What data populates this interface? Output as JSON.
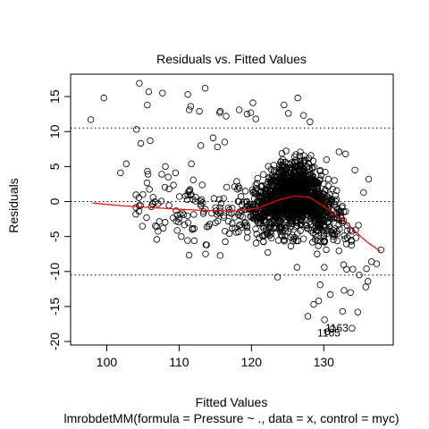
{
  "chart_data": {
    "type": "scatter",
    "title": "Residuals vs. Fitted Values",
    "xlabel": "Fitted Values",
    "ylabel": "Residuals",
    "subtitle": "lmrobdetMM(formula = Pressure ~ ., data = x, control = myc)",
    "xlim": [
      95.0,
      139.6
    ],
    "ylim": [
      -20.5,
      18.2
    ],
    "xticks": [
      100,
      110,
      120,
      130
    ],
    "yticks": [
      -20,
      -15,
      -10,
      -5,
      0,
      5,
      10,
      15
    ],
    "reference_lines": [
      {
        "y": 10.5,
        "style": "dotted"
      },
      {
        "y": 0,
        "style": "dotted"
      },
      {
        "y": -10.5,
        "style": "dotted"
      }
    ],
    "smooth_curve": {
      "color": "#ff0000",
      "points": [
        [
          98,
          -0.2
        ],
        [
          102,
          -0.6
        ],
        [
          106,
          -0.85
        ],
        [
          110,
          -1.1
        ],
        [
          114,
          -1.3
        ],
        [
          118,
          -1.35
        ],
        [
          121,
          -0.9
        ],
        [
          124,
          0.3
        ],
        [
          126,
          0.8
        ],
        [
          128,
          0.6
        ],
        [
          130,
          -0.7
        ],
        [
          132,
          -2.2
        ],
        [
          134,
          -4.0
        ],
        [
          136,
          -5.8
        ],
        [
          137.8,
          -7.1
        ]
      ]
    },
    "outlier_labels": [
      {
        "text": "1163",
        "x": 131.8,
        "y": -18.6
      },
      {
        "text": "1165",
        "x": 130.7,
        "y": -19.3
      }
    ],
    "points": [
      [
        97.8,
        11.7
      ],
      [
        99.6,
        14.8
      ],
      [
        104.5,
        16.9
      ],
      [
        105.8,
        15.7
      ],
      [
        107.7,
        15.5
      ],
      [
        105.6,
        13.8
      ],
      [
        111.2,
        15.3
      ],
      [
        113.6,
        16.2
      ],
      [
        111.6,
        13.6
      ],
      [
        111.4,
        13.1
      ],
      [
        112.8,
        12.9
      ],
      [
        115.7,
        12.9
      ],
      [
        116.5,
        12.2
      ],
      [
        115.6,
        12.7
      ],
      [
        118.3,
        13.1
      ],
      [
        119.9,
        12.7
      ],
      [
        120.2,
        14.1
      ],
      [
        120.6,
        11.8
      ],
      [
        119.4,
        12.5
      ],
      [
        104.7,
        8.3
      ],
      [
        106.0,
        8.7
      ],
      [
        104.1,
        10.3
      ],
      [
        102.7,
        5.4
      ],
      [
        101.9,
        4.1
      ],
      [
        105.7,
        3.9
      ],
      [
        107.6,
        3.9
      ],
      [
        108.5,
        3.5
      ],
      [
        109.5,
        4.1
      ],
      [
        108.1,
        5.0
      ],
      [
        105.0,
        1.0
      ],
      [
        106.4,
        0.6
      ],
      [
        107.1,
        -0.3
      ],
      [
        108.6,
        1.8
      ],
      [
        105.5,
        -2.3
      ],
      [
        106.9,
        -3.6
      ],
      [
        107.8,
        -3.8
      ],
      [
        109.6,
        -2.8
      ],
      [
        110.3,
        -5.0
      ],
      [
        112.1,
        -5.6
      ],
      [
        113.8,
        -6.2
      ],
      [
        111.7,
        5.4
      ],
      [
        113.0,
        8.0
      ],
      [
        114.7,
        9.1
      ],
      [
        115.3,
        7.8
      ],
      [
        116.3,
        8.5
      ],
      [
        124.5,
        13.8
      ],
      [
        126.4,
        14.8
      ],
      [
        125.1,
        12.6
      ],
      [
        127.2,
        12.3
      ],
      [
        128.1,
        11.4
      ],
      [
        123.6,
        -10.8
      ],
      [
        126.3,
        -9.4
      ],
      [
        129.5,
        -11.9
      ],
      [
        130.9,
        -13.3
      ],
      [
        132.8,
        -12.7
      ],
      [
        133.7,
        -13.0
      ],
      [
        130.1,
        -16.9
      ],
      [
        128.6,
        -14.7
      ],
      [
        132.6,
        -15.7
      ],
      [
        133.9,
        -18.1
      ],
      [
        134.7,
        -15.8
      ],
      [
        131.2,
        -18.2
      ],
      [
        130.5,
        -18.6
      ],
      [
        135.8,
        -12.2
      ],
      [
        136.1,
        -11.4
      ],
      [
        134.9,
        -10.5
      ],
      [
        136.6,
        -8.6
      ],
      [
        137.3,
        -8.9
      ],
      [
        135.9,
        -9.6
      ],
      [
        137.9,
        -6.9
      ],
      [
        136.2,
        3.2
      ],
      [
        135.5,
        1.3
      ],
      [
        134.3,
        4.5
      ],
      [
        133.0,
        6.8
      ],
      [
        132.1,
        7.1
      ],
      [
        127.8,
        -16.4
      ],
      [
        129.3,
        -14.2
      ]
    ]
  }
}
